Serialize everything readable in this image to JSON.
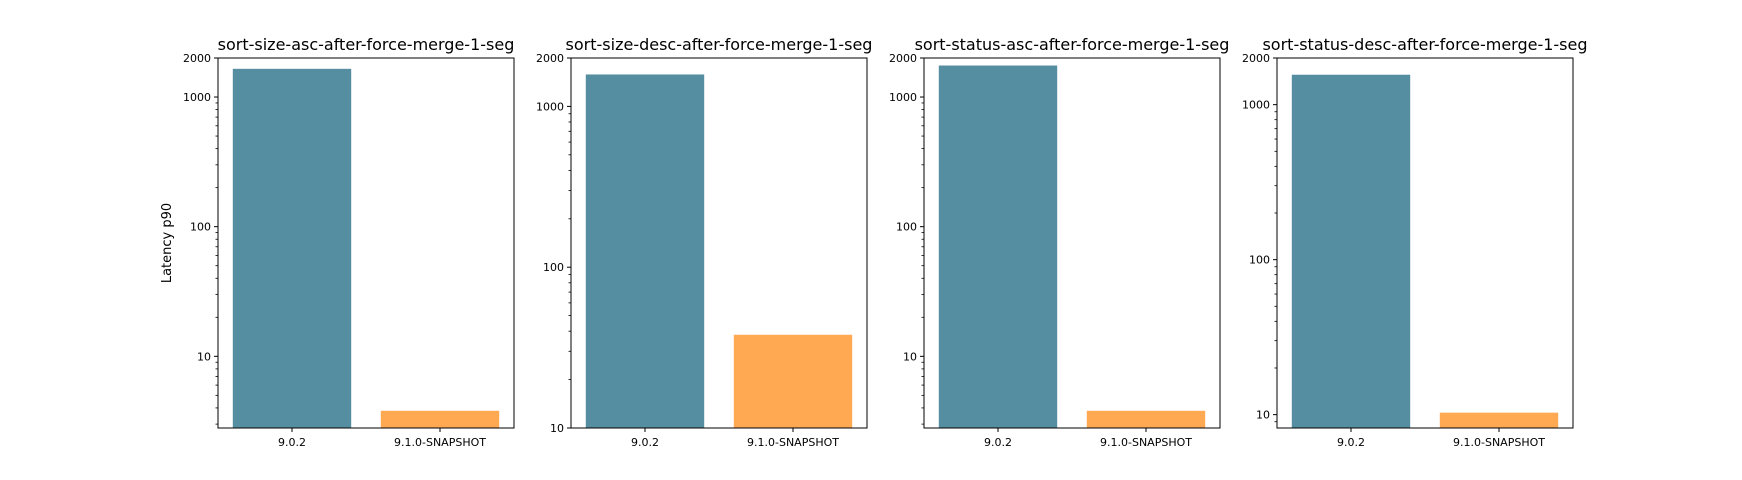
{
  "colors": {
    "baseline": "#568ea1",
    "contender": "#ffa953"
  },
  "chart_data": [
    {
      "type": "bar",
      "title": "sort-size-asc-after-force-merge-1-seg",
      "ylabel": "Latency p90",
      "yscale": "log",
      "ylim": [
        2.8,
        2000
      ],
      "yticks": [
        10,
        100,
        1000,
        2000
      ],
      "categories": [
        "9.0.2",
        "9.1.0-SNAPSHOT"
      ],
      "values": [
        1650,
        3.8
      ]
    },
    {
      "type": "bar",
      "title": "sort-size-desc-after-force-merge-1-seg",
      "ylabel": "",
      "yscale": "log",
      "ylim": [
        10,
        2000
      ],
      "yticks": [
        10,
        100,
        1000,
        2000
      ],
      "categories": [
        "9.0.2",
        "9.1.0-SNAPSHOT"
      ],
      "values": [
        1580,
        38
      ]
    },
    {
      "type": "bar",
      "title": "sort-status-asc-after-force-merge-1-seg",
      "ylabel": "",
      "yscale": "log",
      "ylim": [
        2.8,
        2000
      ],
      "yticks": [
        10,
        100,
        1000,
        2000
      ],
      "categories": [
        "9.0.2",
        "9.1.0-SNAPSHOT"
      ],
      "values": [
        1750,
        3.8
      ]
    },
    {
      "type": "bar",
      "title": "sort-status-desc-after-force-merge-1-seg",
      "ylabel": "",
      "yscale": "log",
      "ylim": [
        8.2,
        2000
      ],
      "yticks": [
        10,
        100,
        1000,
        2000
      ],
      "categories": [
        "9.0.2",
        "9.1.0-SNAPSHOT"
      ],
      "values": [
        1560,
        10.3
      ]
    }
  ]
}
